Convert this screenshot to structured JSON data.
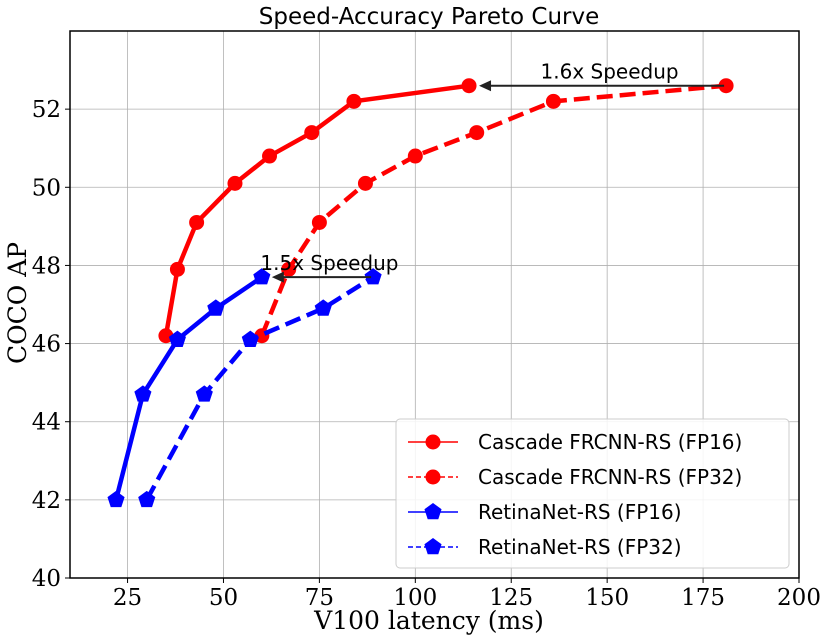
{
  "chart_data": {
    "type": "line",
    "title": "Speed-Accuracy Pareto Curve",
    "xlabel": "V100 latency (ms)",
    "ylabel": "COCO AP",
    "xlim": [
      10,
      200
    ],
    "ylim": [
      40,
      54
    ],
    "xticks": [
      25,
      50,
      75,
      100,
      125,
      150,
      175,
      200
    ],
    "yticks": [
      40,
      42,
      44,
      46,
      48,
      50,
      52
    ],
    "grid": true,
    "legend_position": "lower-right",
    "series": [
      {
        "name": "Cascade FRCNN-RS (FP16)",
        "color": "#ff0000",
        "linestyle": "solid",
        "marker": "circle",
        "x": [
          35,
          38,
          43,
          53,
          62,
          73,
          84,
          114
        ],
        "y": [
          46.2,
          47.9,
          49.1,
          50.1,
          50.8,
          51.4,
          52.2,
          52.6
        ]
      },
      {
        "name": "Cascade FRCNN-RS (FP32)",
        "color": "#ff0000",
        "linestyle": "dashed",
        "marker": "circle",
        "x": [
          60,
          67,
          75,
          87,
          100,
          116,
          136,
          181
        ],
        "y": [
          46.2,
          47.9,
          49.1,
          50.1,
          50.8,
          51.4,
          52.2,
          52.6
        ]
      },
      {
        "name": "RetinaNet-RS (FP16)",
        "color": "#0000ff",
        "linestyle": "solid",
        "marker": "pentagon",
        "x": [
          22,
          29,
          38,
          48,
          60
        ],
        "y": [
          42.0,
          44.7,
          46.1,
          46.9,
          47.7
        ]
      },
      {
        "name": "RetinaNet-RS (FP32)",
        "color": "#0000ff",
        "linestyle": "dashed",
        "marker": "pentagon",
        "x": [
          30,
          45,
          57,
          76,
          89
        ],
        "y": [
          42.0,
          44.7,
          46.1,
          46.9,
          47.7
        ]
      }
    ],
    "annotations": [
      {
        "text": "1.6x Speedup",
        "arrow_from": [
          181,
          52.6
        ],
        "arrow_to": [
          114,
          52.6
        ]
      },
      {
        "text": "1.5x Speedup",
        "arrow_from": [
          89,
          47.7
        ],
        "arrow_to": [
          60,
          47.7
        ]
      }
    ]
  }
}
